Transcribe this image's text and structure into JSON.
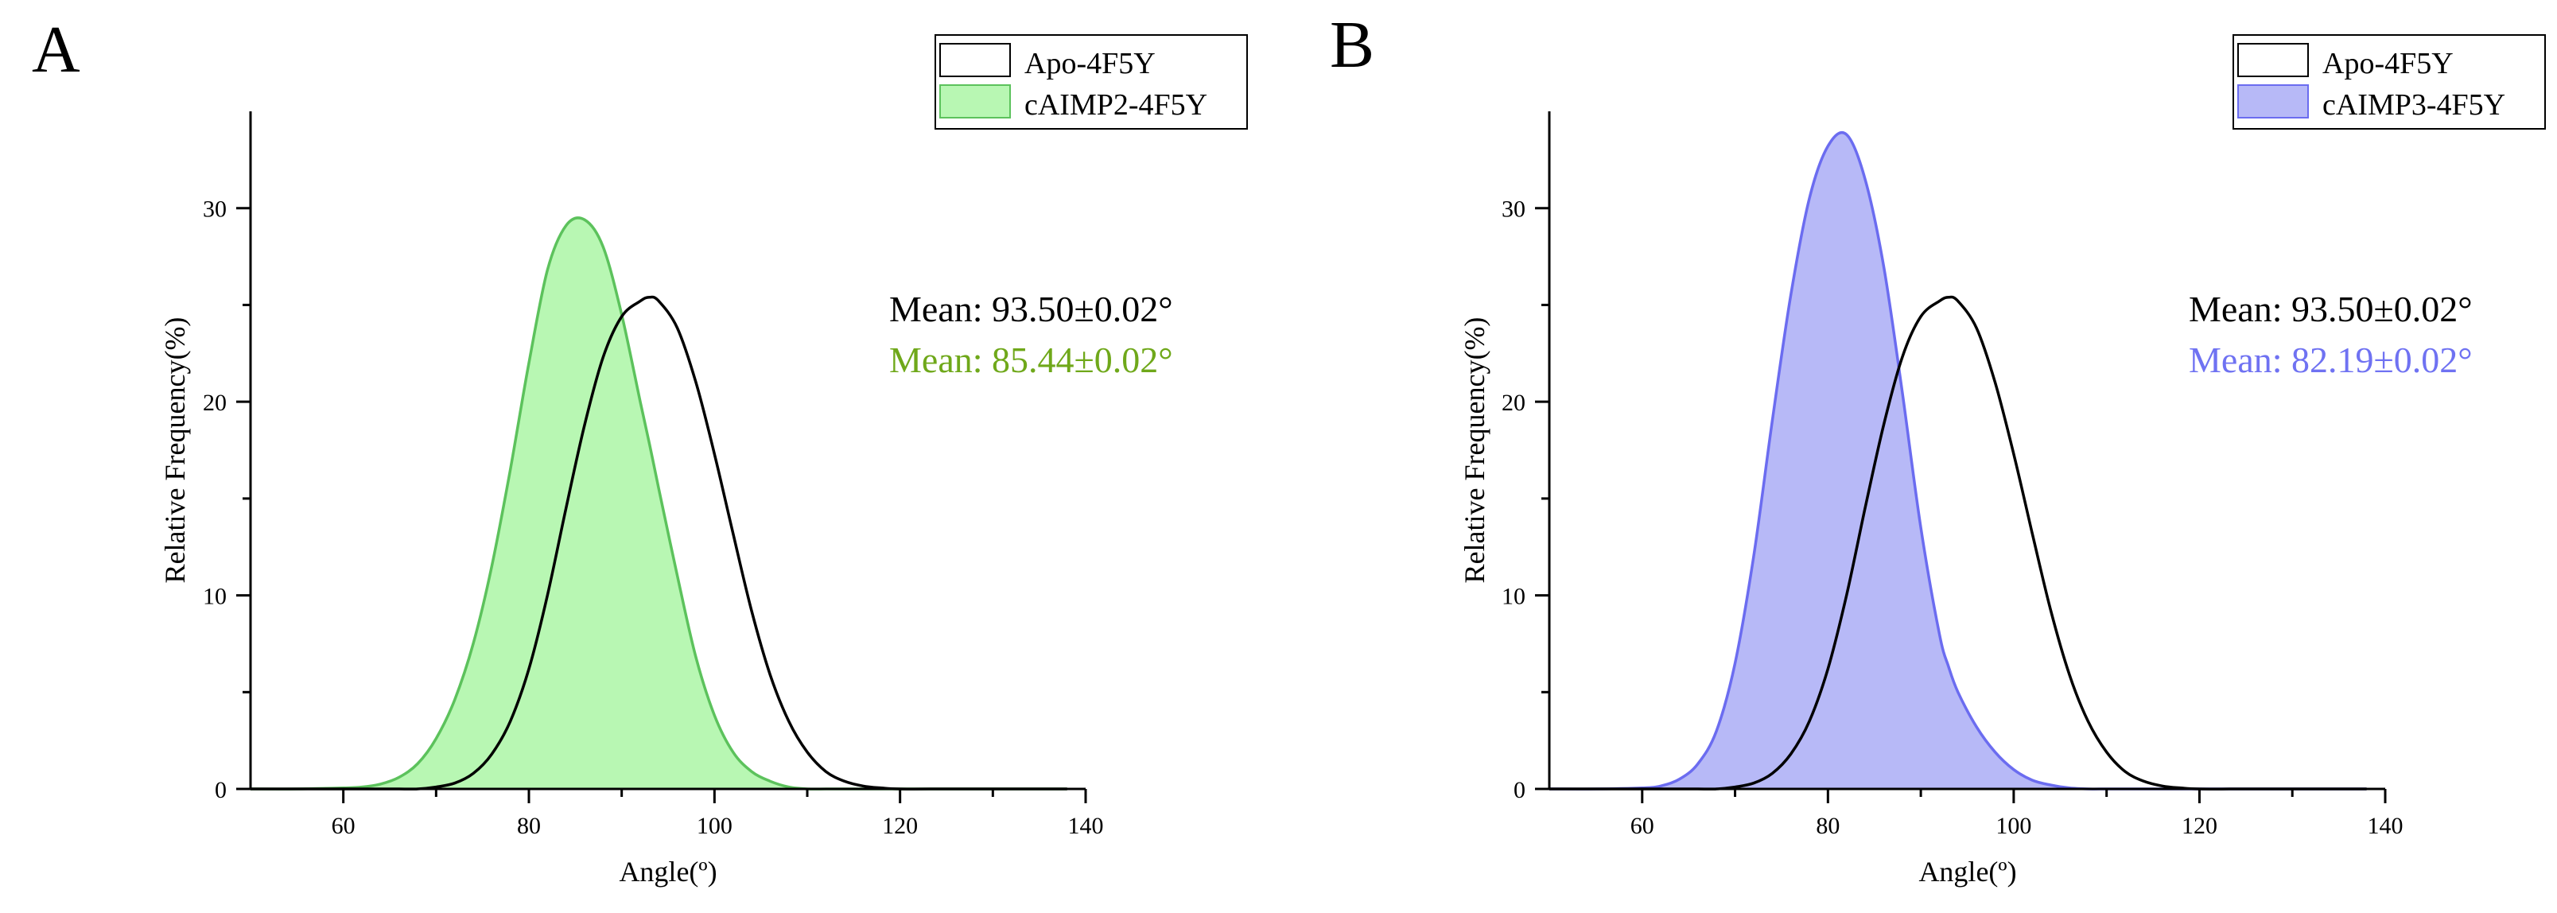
{
  "colors": {
    "axis": "#000000",
    "reference_line": "#000000",
    "green_fill": "#b8f7b3",
    "green_edge": "#5cc25c",
    "green_text": "#6fa81a",
    "blue_fill": "#b7b9f7",
    "blue_edge": "#6b6cf0",
    "blue_text": "#6f72f2"
  },
  "chart_data": [
    {
      "type": "area",
      "panel_label": "A",
      "xlabel": "Angle(º)",
      "ylabel": "Relative Frequency(%)",
      "xlim": [
        50,
        140
      ],
      "ylim": [
        0,
        35
      ],
      "x_ticks": [
        60,
        80,
        100,
        120,
        140
      ],
      "y_ticks": [
        0,
        10,
        20,
        30
      ],
      "grid": false,
      "legend_position": "top-right",
      "x": [
        50,
        55,
        60,
        62,
        64,
        66,
        68,
        70,
        72,
        74,
        76,
        78,
        80,
        82,
        84,
        86,
        88,
        90,
        92,
        93,
        94,
        96,
        98,
        100,
        102,
        104,
        106,
        108,
        110,
        112,
        114,
        116,
        118,
        120,
        125,
        130,
        138
      ],
      "series": [
        {
          "name": "Apo-4F5Y",
          "style": "line",
          "color": "#000000",
          "values": [
            0,
            0,
            0,
            0,
            0,
            0,
            0,
            0.1,
            0.3,
            0.8,
            1.8,
            3.5,
            6.2,
            10.0,
            14.5,
            18.8,
            22.3,
            24.4,
            25.2,
            25.4,
            25.2,
            23.8,
            21.0,
            17.3,
            13.2,
            9.2,
            5.9,
            3.5,
            1.9,
            0.9,
            0.4,
            0.15,
            0.05,
            0,
            0,
            0,
            0
          ]
        },
        {
          "name": "cAIMP2-4F5Y",
          "style": "filled",
          "color": "#5cc25c",
          "values": [
            0,
            0,
            0.05,
            0.1,
            0.25,
            0.6,
            1.3,
            2.6,
            4.6,
            7.5,
            11.5,
            16.5,
            22.0,
            26.8,
            29.1,
            29.4,
            28.0,
            24.5,
            20.0,
            17.8,
            15.5,
            11.0,
            6.8,
            3.8,
            1.9,
            0.9,
            0.4,
            0.1,
            0,
            0,
            0,
            0,
            0,
            0,
            0,
            0,
            0
          ]
        }
      ],
      "annotations": [
        "Mean: 93.50±0.02°",
        "Mean: 85.44±0.02°"
      ]
    },
    {
      "type": "area",
      "panel_label": "B",
      "xlabel": "Angle(º)",
      "ylabel": "Relative Frequency(%)",
      "xlim": [
        50,
        140
      ],
      "ylim": [
        0,
        35
      ],
      "x_ticks": [
        60,
        80,
        100,
        120,
        140
      ],
      "y_ticks": [
        0,
        10,
        20,
        30
      ],
      "grid": false,
      "legend_position": "top-right",
      "x": [
        50,
        55,
        60,
        62,
        64,
        66,
        68,
        70,
        72,
        74,
        76,
        78,
        80,
        82,
        84,
        86,
        88,
        90,
        92,
        93,
        94,
        96,
        98,
        100,
        102,
        104,
        106,
        108,
        110,
        112,
        114,
        116,
        118,
        120,
        125,
        130,
        138
      ],
      "series": [
        {
          "name": "Apo-4F5Y",
          "style": "line",
          "color": "#000000",
          "values": [
            0,
            0,
            0,
            0,
            0,
            0,
            0,
            0.1,
            0.3,
            0.8,
            1.8,
            3.5,
            6.2,
            10.0,
            14.5,
            18.8,
            22.3,
            24.4,
            25.2,
            25.4,
            25.2,
            23.8,
            21.0,
            17.3,
            13.2,
            9.2,
            5.9,
            3.5,
            1.9,
            0.9,
            0.4,
            0.15,
            0.05,
            0,
            0,
            0,
            0
          ]
        },
        {
          "name": "cAIMP3-4F5Y",
          "style": "filled",
          "color": "#6b6cf0",
          "values": [
            0,
            0,
            0.05,
            0.15,
            0.5,
            1.3,
            3.0,
            6.5,
            12.0,
            19.0,
            25.5,
            30.5,
            33.2,
            33.8,
            31.5,
            27.0,
            20.5,
            13.5,
            8.0,
            6.3,
            5.0,
            3.2,
            1.9,
            1.0,
            0.45,
            0.2,
            0.05,
            0,
            0,
            0,
            0,
            0,
            0,
            0,
            0,
            0,
            0
          ]
        }
      ],
      "annotations": [
        "Mean: 93.50±0.02°",
        "Mean: 82.19±0.02°"
      ]
    }
  ]
}
